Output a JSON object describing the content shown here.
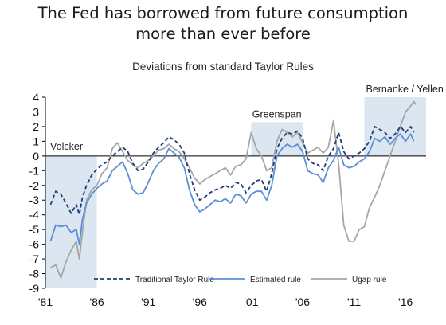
{
  "title_line1": "The Fed has borrowed from future consumption",
  "title_line2": "more than ever before",
  "chart_data": {
    "type": "line",
    "title": "Deviations from standard Taylor Rules",
    "xlabel": "",
    "ylabel": "",
    "xlim": [
      1981,
      2018
    ],
    "ylim": [
      -9,
      4
    ],
    "x_ticks": [
      "'81",
      "'86",
      "'91",
      "'96",
      "'01",
      "'06",
      "'11",
      "'16"
    ],
    "y_ticks": [
      "4",
      "3",
      "2",
      "1",
      "0",
      "-1",
      "-2",
      "-3",
      "-4",
      "-5",
      "-6",
      "-7",
      "-8",
      "-9"
    ],
    "grid": false,
    "legend_position": "bottom",
    "regions": [
      {
        "label": "Volcker",
        "x": [
          1981,
          1986
        ],
        "y": [
          -9,
          0
        ]
      },
      {
        "label": "Greenspan",
        "x": [
          2001,
          2006
        ],
        "y": [
          0,
          2.3
        ]
      },
      {
        "label": "Bernanke / Yellen",
        "x": [
          2012,
          2018
        ],
        "y": [
          0,
          4
        ]
      }
    ],
    "series": [
      {
        "name": "Traditional Taylor Rule",
        "color": "#1f3d7a",
        "style": "dashed",
        "points": [
          [
            1981.5,
            -3.3
          ],
          [
            1982,
            -2.4
          ],
          [
            1982.5,
            -2.6
          ],
          [
            1983,
            -3.2
          ],
          [
            1983.5,
            -3.9
          ],
          [
            1984,
            -3.3
          ],
          [
            1984.3,
            -4.0
          ],
          [
            1984.6,
            -2.8
          ],
          [
            1985,
            -2.0
          ],
          [
            1985.5,
            -1.3
          ],
          [
            1986,
            -0.9
          ],
          [
            1986.5,
            -0.6
          ],
          [
            1987,
            -0.4
          ],
          [
            1987.5,
            0.0
          ],
          [
            1988,
            0.3
          ],
          [
            1988.5,
            0.6
          ],
          [
            1989,
            0.3
          ],
          [
            1989.5,
            -0.5
          ],
          [
            1990,
            -1.0
          ],
          [
            1990.5,
            -0.9
          ],
          [
            1991,
            -0.4
          ],
          [
            1991.5,
            0.2
          ],
          [
            1992,
            0.6
          ],
          [
            1992.5,
            0.9
          ],
          [
            1993,
            1.3
          ],
          [
            1993.5,
            1.1
          ],
          [
            1994,
            0.8
          ],
          [
            1994.5,
            0.2
          ],
          [
            1995,
            -1.2
          ],
          [
            1995.5,
            -2.3
          ],
          [
            1996,
            -3.0
          ],
          [
            1996.5,
            -2.8
          ],
          [
            1997,
            -2.5
          ],
          [
            1997.5,
            -2.3
          ],
          [
            1998,
            -2.2
          ],
          [
            1998.5,
            -2.0
          ],
          [
            1999,
            -2.2
          ],
          [
            1999.5,
            -1.8
          ],
          [
            2000,
            -1.9
          ],
          [
            2000.5,
            -2.5
          ],
          [
            2001,
            -2.0
          ],
          [
            2001.5,
            -1.7
          ],
          [
            2002,
            -1.6
          ],
          [
            2002.5,
            -2.4
          ],
          [
            2003,
            -1.2
          ],
          [
            2003.5,
            0.5
          ],
          [
            2004,
            1.2
          ],
          [
            2004.5,
            1.6
          ],
          [
            2005,
            1.5
          ],
          [
            2005.5,
            1.7
          ],
          [
            2006,
            1.2
          ],
          [
            2006.5,
            -0.2
          ],
          [
            2007,
            -0.5
          ],
          [
            2007.5,
            -0.6
          ],
          [
            2008,
            -1.0
          ],
          [
            2008.5,
            0.0
          ],
          [
            2009,
            0.5
          ],
          [
            2009.5,
            1.6
          ],
          [
            2010,
            0.3
          ],
          [
            2010.5,
            -0.2
          ],
          [
            2011,
            0.0
          ],
          [
            2011.5,
            0.2
          ],
          [
            2012,
            0.5
          ],
          [
            2012.5,
            1.0
          ],
          [
            2013,
            2.0
          ],
          [
            2013.5,
            1.8
          ],
          [
            2014,
            1.6
          ],
          [
            2014.5,
            1.2
          ],
          [
            2015,
            1.5
          ],
          [
            2015.5,
            2.0
          ],
          [
            2016,
            1.6
          ],
          [
            2016.5,
            2.0
          ],
          [
            2016.8,
            1.6
          ]
        ]
      },
      {
        "name": "Estimated rule",
        "color": "#5b8fd6",
        "style": "solid",
        "points": [
          [
            1981.5,
            -5.8
          ],
          [
            1982,
            -4.7
          ],
          [
            1982.5,
            -4.8
          ],
          [
            1983,
            -4.7
          ],
          [
            1983.5,
            -5.2
          ],
          [
            1984,
            -5.0
          ],
          [
            1984.3,
            -6.0
          ],
          [
            1984.6,
            -4.3
          ],
          [
            1985,
            -3.2
          ],
          [
            1985.5,
            -2.6
          ],
          [
            1986,
            -2.2
          ],
          [
            1986.5,
            -1.9
          ],
          [
            1987,
            -1.7
          ],
          [
            1987.5,
            -1.0
          ],
          [
            1988,
            -0.7
          ],
          [
            1988.5,
            -0.4
          ],
          [
            1989,
            -1.2
          ],
          [
            1989.5,
            -2.3
          ],
          [
            1990,
            -2.6
          ],
          [
            1990.5,
            -2.5
          ],
          [
            1991,
            -1.8
          ],
          [
            1991.5,
            -1.0
          ],
          [
            1992,
            -0.5
          ],
          [
            1992.5,
            -0.2
          ],
          [
            1993,
            0.5
          ],
          [
            1993.5,
            0.2
          ],
          [
            1994,
            -0.1
          ],
          [
            1994.5,
            -0.8
          ],
          [
            1995,
            -2.3
          ],
          [
            1995.5,
            -3.3
          ],
          [
            1996,
            -3.8
          ],
          [
            1996.5,
            -3.6
          ],
          [
            1997,
            -3.3
          ],
          [
            1997.5,
            -3.0
          ],
          [
            1998,
            -3.1
          ],
          [
            1998.5,
            -2.9
          ],
          [
            1999,
            -3.2
          ],
          [
            1999.5,
            -2.6
          ],
          [
            2000,
            -2.7
          ],
          [
            2000.5,
            -3.2
          ],
          [
            2001,
            -2.6
          ],
          [
            2001.5,
            -2.4
          ],
          [
            2002,
            -2.4
          ],
          [
            2002.5,
            -3.0
          ],
          [
            2003,
            -2.0
          ],
          [
            2003.5,
            0.0
          ],
          [
            2004,
            0.5
          ],
          [
            2004.5,
            0.8
          ],
          [
            2005,
            0.6
          ],
          [
            2005.5,
            0.8
          ],
          [
            2006,
            0.3
          ],
          [
            2006.5,
            -1.0
          ],
          [
            2007,
            -1.2
          ],
          [
            2007.5,
            -1.3
          ],
          [
            2008,
            -1.8
          ],
          [
            2008.5,
            -0.8
          ],
          [
            2009,
            -0.3
          ],
          [
            2009.5,
            0.6
          ],
          [
            2010,
            -0.6
          ],
          [
            2010.5,
            -0.8
          ],
          [
            2011,
            -0.7
          ],
          [
            2011.5,
            -0.4
          ],
          [
            2012,
            -0.2
          ],
          [
            2012.5,
            0.3
          ],
          [
            2013,
            1.2
          ],
          [
            2013.5,
            1.0
          ],
          [
            2014,
            1.3
          ],
          [
            2014.5,
            0.8
          ],
          [
            2015,
            1.2
          ],
          [
            2015.5,
            1.5
          ],
          [
            2016,
            1.0
          ],
          [
            2016.5,
            1.5
          ],
          [
            2016.8,
            1.0
          ]
        ]
      },
      {
        "name": "Ugap rule",
        "color": "#a6a6a6",
        "style": "solid",
        "points": [
          [
            1981.5,
            -7.6
          ],
          [
            1982,
            -7.4
          ],
          [
            1982.5,
            -8.3
          ],
          [
            1983,
            -7.2
          ],
          [
            1983.5,
            -6.4
          ],
          [
            1984,
            -5.8
          ],
          [
            1984.3,
            -7.0
          ],
          [
            1984.6,
            -5.2
          ],
          [
            1985,
            -3.0
          ],
          [
            1985.5,
            -2.3
          ],
          [
            1986,
            -2.0
          ],
          [
            1986.5,
            -1.2
          ],
          [
            1987,
            -0.8
          ],
          [
            1987.5,
            0.5
          ],
          [
            1988,
            0.9
          ],
          [
            1988.5,
            0.3
          ],
          [
            1989,
            -0.3
          ],
          [
            1989.5,
            -0.6
          ],
          [
            1990,
            -0.8
          ],
          [
            1990.5,
            -0.5
          ],
          [
            1991,
            -0.3
          ],
          [
            1991.5,
            0.0
          ],
          [
            1992,
            0.4
          ],
          [
            1992.5,
            0.5
          ],
          [
            1993,
            0.8
          ],
          [
            1993.5,
            0.5
          ],
          [
            1994,
            0.3
          ],
          [
            1994.5,
            -0.2
          ],
          [
            1995,
            -0.8
          ],
          [
            1995.5,
            -1.5
          ],
          [
            1996,
            -1.9
          ],
          [
            1996.5,
            -1.6
          ],
          [
            1997,
            -1.4
          ],
          [
            1997.5,
            -1.2
          ],
          [
            1998,
            -1.0
          ],
          [
            1998.5,
            -0.8
          ],
          [
            1999,
            -1.3
          ],
          [
            1999.5,
            -0.7
          ],
          [
            2000,
            -0.6
          ],
          [
            2000.5,
            -0.2
          ],
          [
            2001,
            1.6
          ],
          [
            2001.5,
            0.5
          ],
          [
            2002,
            0.0
          ],
          [
            2002.5,
            -1.0
          ],
          [
            2003,
            -0.8
          ],
          [
            2003.5,
            1.0
          ],
          [
            2004,
            1.8
          ],
          [
            2004.5,
            1.6
          ],
          [
            2005,
            1.3
          ],
          [
            2005.5,
            1.6
          ],
          [
            2006,
            0.9
          ],
          [
            2006.5,
            0.2
          ],
          [
            2007,
            0.4
          ],
          [
            2007.5,
            0.6
          ],
          [
            2008,
            0.2
          ],
          [
            2008.5,
            0.6
          ],
          [
            2009,
            2.4
          ],
          [
            2009.5,
            -0.5
          ],
          [
            2010,
            -4.7
          ],
          [
            2010.5,
            -5.8
          ],
          [
            2011,
            -5.8
          ],
          [
            2011.5,
            -5.0
          ],
          [
            2012,
            -4.8
          ],
          [
            2012.5,
            -3.5
          ],
          [
            2013,
            -2.8
          ],
          [
            2013.5,
            -2.0
          ],
          [
            2014,
            -1.0
          ],
          [
            2014.5,
            0.0
          ],
          [
            2015,
            1.0
          ],
          [
            2015.5,
            2.0
          ],
          [
            2016,
            3.0
          ],
          [
            2016.5,
            3.4
          ],
          [
            2016.8,
            3.7
          ],
          [
            2017,
            3.5
          ]
        ]
      }
    ]
  }
}
